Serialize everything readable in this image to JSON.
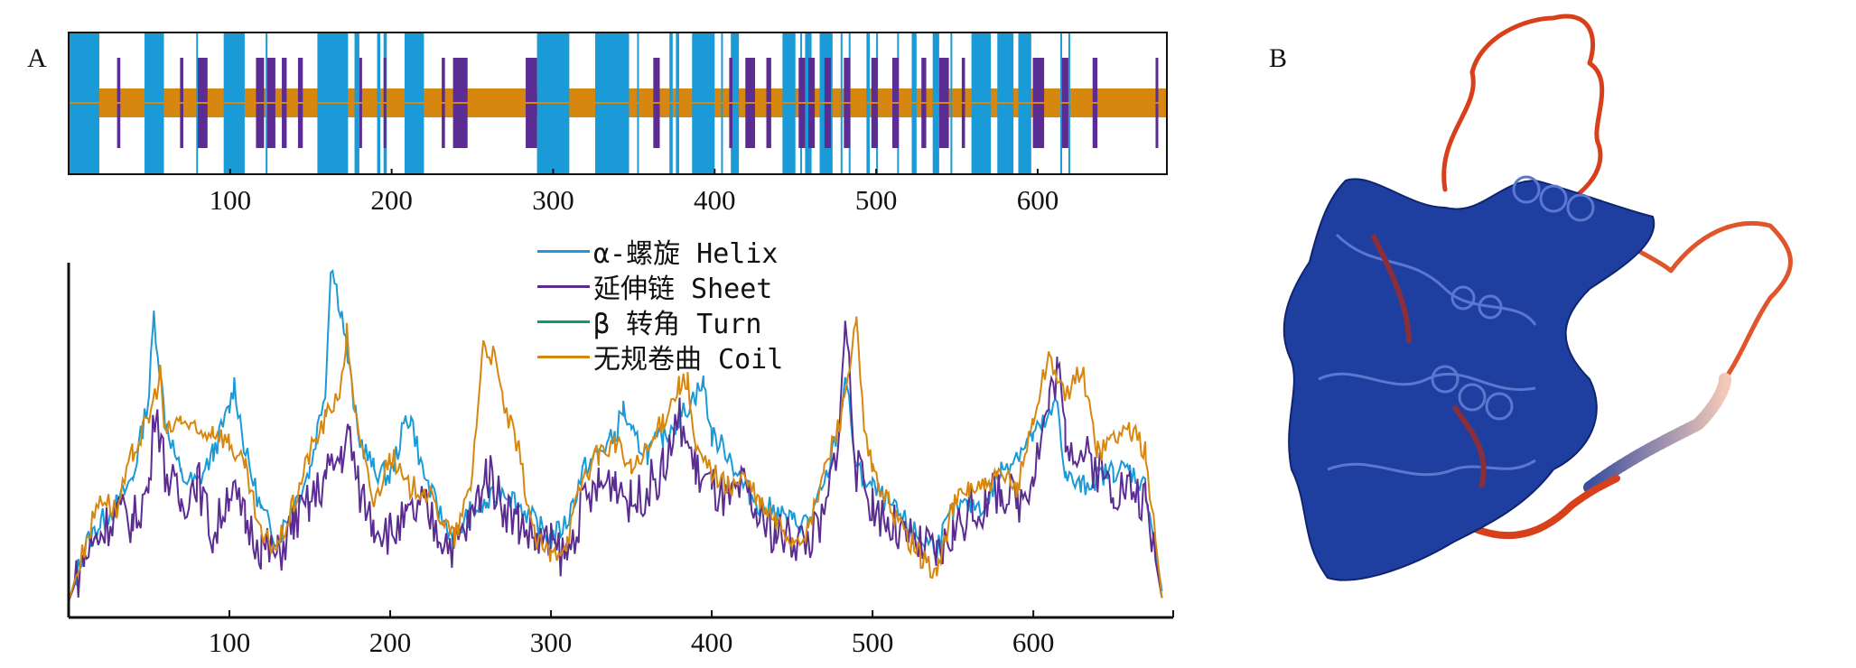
{
  "panel_labels": {
    "a": "A",
    "b": "B"
  },
  "colors": {
    "helix": "#1a9ad6",
    "sheet": "#5b2c91",
    "turn": "#0e9a6e",
    "coil": "#d6870f",
    "protein_blue": "#1f3fa0",
    "protein_red": "#d8401c"
  },
  "chart_data": [
    {
      "type": "segments",
      "title": "",
      "x_range": [
        0,
        680
      ],
      "x_ticks": [
        "100",
        "200",
        "300",
        "400",
        "500",
        "600"
      ],
      "x_tick_values": [
        100,
        200,
        300,
        400,
        500,
        600
      ],
      "coil_band": [
        19,
        680
      ],
      "helix": [
        [
          0,
          19
        ],
        [
          47,
          59
        ],
        [
          79,
          80
        ],
        [
          96,
          109
        ],
        [
          122,
          123
        ],
        [
          154,
          173
        ],
        [
          177,
          180
        ],
        [
          191,
          193
        ],
        [
          195,
          197
        ],
        [
          208,
          220
        ],
        [
          290,
          310
        ],
        [
          326,
          347
        ],
        [
          352,
          353
        ],
        [
          372,
          374
        ],
        [
          376,
          378
        ],
        [
          386,
          400
        ],
        [
          404,
          405
        ],
        [
          410,
          415
        ],
        [
          442,
          450
        ],
        [
          453,
          454
        ],
        [
          456,
          460
        ],
        [
          465,
          473
        ],
        [
          478,
          479
        ],
        [
          483,
          484
        ],
        [
          494,
          496
        ],
        [
          500,
          501
        ],
        [
          513,
          514
        ],
        [
          522,
          525
        ],
        [
          535,
          539
        ],
        [
          546,
          547
        ],
        [
          559,
          571
        ],
        [
          575,
          585
        ],
        [
          588,
          596
        ],
        [
          614,
          615
        ],
        [
          619,
          620
        ]
      ],
      "sheet": [
        [
          30,
          32
        ],
        [
          69,
          71
        ],
        [
          80,
          86
        ],
        [
          116,
          121
        ],
        [
          123,
          128
        ],
        [
          132,
          135
        ],
        [
          142,
          145
        ],
        [
          180,
          181
        ],
        [
          195,
          196
        ],
        [
          231,
          233
        ],
        [
          238,
          247
        ],
        [
          283,
          290
        ],
        [
          362,
          366
        ],
        [
          409,
          411
        ],
        [
          419,
          425
        ],
        [
          432,
          435
        ],
        [
          452,
          456
        ],
        [
          458,
          462
        ],
        [
          468,
          472
        ],
        [
          480,
          484
        ],
        [
          497,
          501
        ],
        [
          510,
          514
        ],
        [
          528,
          531
        ],
        [
          539,
          545
        ],
        [
          553,
          555
        ],
        [
          597,
          604
        ],
        [
          615,
          619
        ],
        [
          634,
          637
        ],
        [
          673,
          674
        ]
      ]
    },
    {
      "type": "line",
      "title": "",
      "xlabel": "",
      "ylabel": "",
      "x_range": [
        0,
        687
      ],
      "y_range": [
        0,
        100
      ],
      "x_ticks": [
        "100",
        "200",
        "300",
        "400",
        "500",
        "600"
      ],
      "x_tick_values": [
        100,
        200,
        300,
        400,
        500,
        600
      ],
      "legend_position": "top-center",
      "series": [
        {
          "key": "helix",
          "name": "α-螺旋 Helix",
          "points": [
            [
              0,
              2
            ],
            [
              10,
              18
            ],
            [
              20,
              25
            ],
            [
              30,
              30
            ],
            [
              40,
              38
            ],
            [
              50,
              62
            ],
            [
              53,
              85
            ],
            [
              60,
              55
            ],
            [
              70,
              38
            ],
            [
              80,
              36
            ],
            [
              90,
              45
            ],
            [
              100,
              58
            ],
            [
              103,
              65
            ],
            [
              110,
              45
            ],
            [
              120,
              28
            ],
            [
              130,
              20
            ],
            [
              140,
              30
            ],
            [
              150,
              40
            ],
            [
              160,
              65
            ],
            [
              163,
              100
            ],
            [
              170,
              85
            ],
            [
              180,
              50
            ],
            [
              190,
              40
            ],
            [
              200,
              38
            ],
            [
              210,
              55
            ],
            [
              213,
              55
            ],
            [
              220,
              40
            ],
            [
              230,
              28
            ],
            [
              240,
              20
            ],
            [
              250,
              28
            ],
            [
              260,
              30
            ],
            [
              270,
              35
            ],
            [
              280,
              30
            ],
            [
              290,
              25
            ],
            [
              300,
              20
            ],
            [
              310,
              25
            ],
            [
              320,
              40
            ],
            [
              330,
              45
            ],
            [
              340,
              50
            ],
            [
              345,
              58
            ],
            [
              350,
              50
            ],
            [
              360,
              45
            ],
            [
              370,
              50
            ],
            [
              380,
              55
            ],
            [
              390,
              62
            ],
            [
              395,
              65
            ],
            [
              400,
              50
            ],
            [
              410,
              45
            ],
            [
              420,
              35
            ],
            [
              430,
              30
            ],
            [
              440,
              28
            ],
            [
              450,
              25
            ],
            [
              460,
              25
            ],
            [
              470,
              35
            ],
            [
              480,
              55
            ],
            [
              483,
              68
            ],
            [
              490,
              40
            ],
            [
              500,
              35
            ],
            [
              510,
              30
            ],
            [
              520,
              25
            ],
            [
              530,
              20
            ],
            [
              540,
              18
            ],
            [
              550,
              28
            ],
            [
              560,
              30
            ],
            [
              570,
              30
            ],
            [
              580,
              40
            ],
            [
              590,
              45
            ],
            [
              600,
              50
            ],
            [
              610,
              55
            ],
            [
              615,
              60
            ],
            [
              620,
              38
            ],
            [
              630,
              35
            ],
            [
              640,
              38
            ],
            [
              650,
              40
            ],
            [
              660,
              40
            ],
            [
              670,
              35
            ],
            [
              680,
              5
            ]
          ]
        },
        {
          "key": "sheet",
          "name": "延伸链 Sheet",
          "points": [
            [
              0,
              2
            ],
            [
              10,
              15
            ],
            [
              20,
              22
            ],
            [
              30,
              28
            ],
            [
              40,
              25
            ],
            [
              50,
              35
            ],
            [
              54,
              60
            ],
            [
              60,
              40
            ],
            [
              70,
              30
            ],
            [
              80,
              38
            ],
            [
              90,
              20
            ],
            [
              100,
              35
            ],
            [
              110,
              25
            ],
            [
              120,
              18
            ],
            [
              130,
              15
            ],
            [
              140,
              25
            ],
            [
              150,
              30
            ],
            [
              160,
              38
            ],
            [
              170,
              45
            ],
            [
              175,
              50
            ],
            [
              180,
              35
            ],
            [
              190,
              25
            ],
            [
              200,
              22
            ],
            [
              210,
              25
            ],
            [
              220,
              30
            ],
            [
              230,
              22
            ],
            [
              240,
              18
            ],
            [
              250,
              25
            ],
            [
              260,
              40
            ],
            [
              265,
              35
            ],
            [
              270,
              30
            ],
            [
              280,
              25
            ],
            [
              290,
              20
            ],
            [
              300,
              18
            ],
            [
              310,
              15
            ],
            [
              320,
              30
            ],
            [
              330,
              35
            ],
            [
              340,
              38
            ],
            [
              350,
              30
            ],
            [
              360,
              35
            ],
            [
              370,
              40
            ],
            [
              380,
              55
            ],
            [
              390,
              40
            ],
            [
              400,
              35
            ],
            [
              410,
              30
            ],
            [
              420,
              35
            ],
            [
              430,
              25
            ],
            [
              440,
              22
            ],
            [
              450,
              20
            ],
            [
              460,
              20
            ],
            [
              470,
              25
            ],
            [
              480,
              55
            ],
            [
              483,
              85
            ],
            [
              490,
              40
            ],
            [
              500,
              30
            ],
            [
              510,
              25
            ],
            [
              520,
              20
            ],
            [
              530,
              18
            ],
            [
              540,
              15
            ],
            [
              550,
              22
            ],
            [
              560,
              28
            ],
            [
              570,
              30
            ],
            [
              580,
              35
            ],
            [
              590,
              30
            ],
            [
              600,
              40
            ],
            [
              610,
              60
            ],
            [
              615,
              70
            ],
            [
              620,
              50
            ],
            [
              630,
              45
            ],
            [
              640,
              40
            ],
            [
              650,
              35
            ],
            [
              660,
              35
            ],
            [
              670,
              30
            ],
            [
              680,
              3
            ]
          ]
        },
        {
          "key": "turn",
          "name": "β 转角 Turn",
          "points": []
        },
        {
          "key": "coil",
          "name": "无规卷曲 Coil",
          "points": [
            [
              0,
              2
            ],
            [
              10,
              18
            ],
            [
              20,
              33
            ],
            [
              30,
              28
            ],
            [
              40,
              45
            ],
            [
              50,
              55
            ],
            [
              57,
              68
            ],
            [
              60,
              50
            ],
            [
              70,
              55
            ],
            [
              80,
              50
            ],
            [
              90,
              52
            ],
            [
              100,
              48
            ],
            [
              110,
              40
            ],
            [
              120,
              20
            ],
            [
              130,
              18
            ],
            [
              140,
              30
            ],
            [
              150,
              45
            ],
            [
              160,
              55
            ],
            [
              170,
              65
            ],
            [
              173,
              80
            ],
            [
              180,
              50
            ],
            [
              190,
              30
            ],
            [
              200,
              45
            ],
            [
              210,
              35
            ],
            [
              220,
              35
            ],
            [
              230,
              28
            ],
            [
              240,
              20
            ],
            [
              250,
              35
            ],
            [
              258,
              77
            ],
            [
              265,
              72
            ],
            [
              270,
              60
            ],
            [
              280,
              45
            ],
            [
              290,
              20
            ],
            [
              300,
              15
            ],
            [
              310,
              20
            ],
            [
              320,
              38
            ],
            [
              330,
              45
            ],
            [
              340,
              48
            ],
            [
              350,
              40
            ],
            [
              360,
              45
            ],
            [
              370,
              55
            ],
            [
              380,
              65
            ],
            [
              385,
              65
            ],
            [
              390,
              45
            ],
            [
              400,
              40
            ],
            [
              410,
              35
            ],
            [
              420,
              38
            ],
            [
              430,
              30
            ],
            [
              440,
              25
            ],
            [
              450,
              20
            ],
            [
              460,
              22
            ],
            [
              470,
              40
            ],
            [
              480,
              55
            ],
            [
              490,
              82
            ],
            [
              495,
              50
            ],
            [
              500,
              40
            ],
            [
              510,
              30
            ],
            [
              520,
              22
            ],
            [
              530,
              15
            ],
            [
              540,
              10
            ],
            [
              550,
              30
            ],
            [
              560,
              35
            ],
            [
              570,
              35
            ],
            [
              580,
              38
            ],
            [
              590,
              35
            ],
            [
              600,
              55
            ],
            [
              610,
              74
            ],
            [
              620,
              60
            ],
            [
              630,
              70
            ],
            [
              640,
              45
            ],
            [
              650,
              50
            ],
            [
              660,
              52
            ],
            [
              670,
              45
            ],
            [
              680,
              3
            ]
          ]
        }
      ]
    }
  ]
}
